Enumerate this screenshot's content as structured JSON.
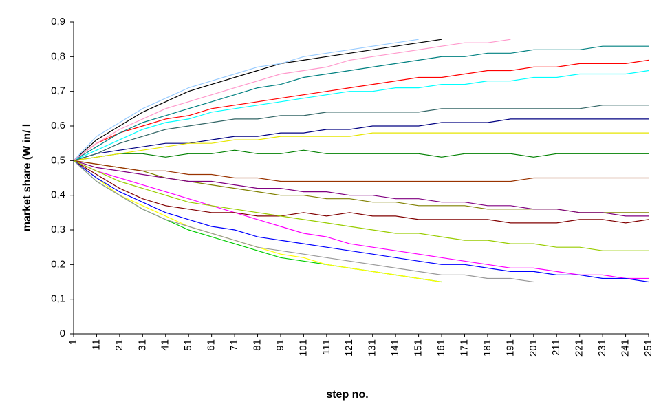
{
  "chart_data": {
    "type": "line",
    "y_label": "market share (W in/ l",
    "x_label": "step no.",
    "x": [
      1,
      11,
      21,
      31,
      41,
      51,
      61,
      71,
      81,
      91,
      101,
      111,
      121,
      131,
      141,
      151,
      161,
      171,
      181,
      191,
      201,
      211,
      221,
      231,
      241,
      251
    ],
    "xlim": [
      1,
      251
    ],
    "xticks": [
      1,
      11,
      21,
      31,
      41,
      51,
      61,
      71,
      81,
      91,
      101,
      111,
      121,
      131,
      141,
      151,
      161,
      171,
      181,
      191,
      201,
      211,
      221,
      231,
      241,
      251
    ],
    "ylim": [
      0,
      0.9
    ],
    "yticks": [
      0,
      {
        "value": 0.1,
        "label": "0,1"
      },
      {
        "value": 0.2,
        "label": "0,2"
      },
      {
        "value": 0.3,
        "label": "0,3"
      },
      {
        "value": 0.4,
        "label": "0,4"
      },
      {
        "value": 0.5,
        "label": "0,5"
      },
      {
        "value": 0.6,
        "label": "0,6"
      },
      {
        "value": 0.7,
        "label": "0,7"
      },
      {
        "value": 0.8,
        "label": "0,8"
      },
      {
        "value": 0.9,
        "label": "0,9"
      }
    ],
    "grid": false,
    "series": [
      {
        "color": "#000000",
        "values": [
          0.5,
          0.56,
          0.6,
          0.64,
          0.67,
          0.7,
          0.72,
          0.74,
          0.76,
          0.78,
          0.79,
          0.8,
          0.81,
          0.82,
          0.83,
          0.84,
          0.85,
          null,
          null,
          null,
          null,
          null,
          null,
          null,
          null,
          null
        ]
      },
      {
        "color": "#99ccff",
        "values": [
          0.5,
          0.57,
          0.61,
          0.65,
          0.68,
          0.71,
          0.73,
          0.75,
          0.77,
          0.78,
          0.8,
          0.81,
          0.82,
          0.83,
          0.84,
          0.85,
          null,
          null,
          null,
          null,
          null,
          null,
          null,
          null,
          null,
          null
        ]
      },
      {
        "color": "#00cc00",
        "values": [
          0.5,
          0.44,
          0.4,
          0.36,
          0.33,
          0.3,
          0.28,
          0.26,
          0.24,
          0.22,
          0.21,
          0.2,
          0.19,
          0.18,
          0.17,
          0.16,
          0.15,
          null,
          null,
          null,
          null,
          null,
          null,
          null,
          null,
          null
        ]
      },
      {
        "color": "#ffff00",
        "values": [
          0.5,
          0.45,
          0.4,
          0.37,
          0.34,
          0.31,
          0.29,
          0.27,
          0.25,
          0.23,
          0.22,
          0.2,
          0.19,
          0.18,
          0.17,
          0.16,
          0.15,
          null,
          null,
          null,
          null,
          null,
          null,
          null,
          null,
          null
        ]
      },
      {
        "color": "#ff0000",
        "values": [
          0.5,
          0.55,
          0.58,
          0.6,
          0.62,
          0.63,
          0.65,
          0.66,
          0.67,
          0.68,
          0.69,
          0.7,
          0.71,
          0.72,
          0.73,
          0.74,
          0.74,
          0.75,
          0.76,
          0.76,
          0.77,
          0.77,
          0.78,
          0.78,
          0.78,
          0.79
        ]
      },
      {
        "color": "#000080",
        "values": [
          0.5,
          0.52,
          0.53,
          0.54,
          0.55,
          0.55,
          0.56,
          0.57,
          0.57,
          0.58,
          0.58,
          0.59,
          0.59,
          0.6,
          0.6,
          0.6,
          0.61,
          0.61,
          0.61,
          0.62,
          0.62,
          0.62,
          0.62,
          0.62,
          0.62,
          0.62
        ]
      },
      {
        "color": "#ff00ff",
        "values": [
          0.5,
          0.47,
          0.45,
          0.43,
          0.41,
          0.39,
          0.37,
          0.35,
          0.33,
          0.31,
          0.29,
          0.28,
          0.26,
          0.25,
          0.24,
          0.23,
          0.22,
          0.21,
          0.2,
          0.19,
          0.19,
          0.18,
          0.17,
          0.17,
          0.16,
          0.16
        ]
      },
      {
        "color": "#008080",
        "values": [
          0.5,
          0.54,
          0.58,
          0.61,
          0.63,
          0.65,
          0.67,
          0.69,
          0.71,
          0.72,
          0.74,
          0.75,
          0.76,
          0.77,
          0.78,
          0.79,
          0.8,
          0.8,
          0.81,
          0.81,
          0.82,
          0.82,
          0.82,
          0.83,
          0.83,
          0.83
        ]
      },
      {
        "color": "#800000",
        "values": [
          0.5,
          0.46,
          0.42,
          0.39,
          0.37,
          0.36,
          0.35,
          0.35,
          0.34,
          0.34,
          0.35,
          0.34,
          0.35,
          0.34,
          0.34,
          0.33,
          0.33,
          0.33,
          0.33,
          0.32,
          0.32,
          0.32,
          0.33,
          0.33,
          0.32,
          0.33
        ]
      },
      {
        "color": "#808000",
        "values": [
          0.5,
          0.49,
          0.48,
          0.47,
          0.45,
          0.44,
          0.43,
          0.42,
          0.41,
          0.4,
          0.4,
          0.39,
          0.39,
          0.38,
          0.38,
          0.37,
          0.37,
          0.37,
          0.36,
          0.36,
          0.36,
          0.36,
          0.35,
          0.35,
          0.35,
          0.35
        ]
      },
      {
        "color": "#00ffff",
        "values": [
          0.5,
          0.53,
          0.56,
          0.59,
          0.61,
          0.62,
          0.64,
          0.65,
          0.66,
          0.67,
          0.68,
          0.69,
          0.7,
          0.7,
          0.71,
          0.71,
          0.72,
          0.72,
          0.73,
          0.73,
          0.74,
          0.74,
          0.75,
          0.75,
          0.75,
          0.76
        ]
      },
      {
        "color": "#0000ff",
        "values": [
          0.5,
          0.45,
          0.41,
          0.38,
          0.35,
          0.33,
          0.31,
          0.3,
          0.28,
          0.27,
          0.26,
          0.25,
          0.24,
          0.23,
          0.22,
          0.21,
          0.2,
          0.2,
          0.19,
          0.18,
          0.18,
          0.17,
          0.17,
          0.16,
          0.16,
          0.15
        ]
      },
      {
        "color": "#008000",
        "values": [
          0.5,
          0.51,
          0.52,
          0.52,
          0.51,
          0.52,
          0.52,
          0.53,
          0.52,
          0.52,
          0.53,
          0.52,
          0.52,
          0.52,
          0.52,
          0.52,
          0.51,
          0.52,
          0.52,
          0.52,
          0.51,
          0.52,
          0.52,
          0.52,
          0.52,
          0.52
        ]
      },
      {
        "color": "#800080",
        "values": [
          0.5,
          0.48,
          0.47,
          0.46,
          0.45,
          0.44,
          0.44,
          0.43,
          0.42,
          0.42,
          0.41,
          0.41,
          0.4,
          0.4,
          0.39,
          0.39,
          0.38,
          0.38,
          0.37,
          0.37,
          0.36,
          0.36,
          0.35,
          0.35,
          0.34,
          0.34
        ]
      },
      {
        "color": "#999999",
        "values": [
          0.5,
          0.44,
          0.4,
          0.36,
          0.33,
          0.31,
          0.29,
          0.27,
          0.25,
          0.24,
          0.23,
          0.22,
          0.21,
          0.2,
          0.19,
          0.18,
          0.17,
          0.17,
          0.16,
          0.16,
          0.15,
          null,
          null,
          null,
          null,
          null
        ]
      },
      {
        "color": "#e6e600",
        "values": [
          0.5,
          0.51,
          0.52,
          0.53,
          0.54,
          0.55,
          0.55,
          0.56,
          0.56,
          0.57,
          0.57,
          0.57,
          0.57,
          0.58,
          0.58,
          0.58,
          0.58,
          0.58,
          0.58,
          0.58,
          0.58,
          0.58,
          0.58,
          0.58,
          0.58,
          0.58
        ]
      },
      {
        "color": "#993300",
        "values": [
          0.5,
          0.49,
          0.48,
          0.47,
          0.47,
          0.46,
          0.46,
          0.45,
          0.45,
          0.44,
          0.44,
          0.44,
          0.44,
          0.44,
          0.44,
          0.44,
          0.44,
          0.44,
          0.44,
          0.44,
          0.45,
          0.45,
          0.45,
          0.45,
          0.45,
          0.45
        ]
      },
      {
        "color": "#ff99cc",
        "values": [
          0.5,
          0.55,
          0.59,
          0.62,
          0.65,
          0.67,
          0.69,
          0.71,
          0.73,
          0.75,
          0.76,
          0.77,
          0.79,
          0.8,
          0.81,
          0.82,
          0.83,
          0.84,
          0.84,
          0.85,
          null,
          null,
          null,
          null,
          null,
          null
        ]
      },
      {
        "color": "#336666",
        "values": [
          0.5,
          0.52,
          0.55,
          0.57,
          0.59,
          0.6,
          0.61,
          0.62,
          0.62,
          0.63,
          0.63,
          0.64,
          0.64,
          0.64,
          0.64,
          0.64,
          0.65,
          0.65,
          0.65,
          0.65,
          0.65,
          0.65,
          0.65,
          0.66,
          0.66,
          0.66
        ]
      },
      {
        "color": "#99cc00",
        "values": [
          0.5,
          0.47,
          0.44,
          0.42,
          0.4,
          0.38,
          0.37,
          0.36,
          0.35,
          0.34,
          0.33,
          0.32,
          0.31,
          0.3,
          0.29,
          0.29,
          0.28,
          0.27,
          0.27,
          0.26,
          0.26,
          0.25,
          0.25,
          0.24,
          0.24,
          0.24
        ]
      }
    ]
  }
}
